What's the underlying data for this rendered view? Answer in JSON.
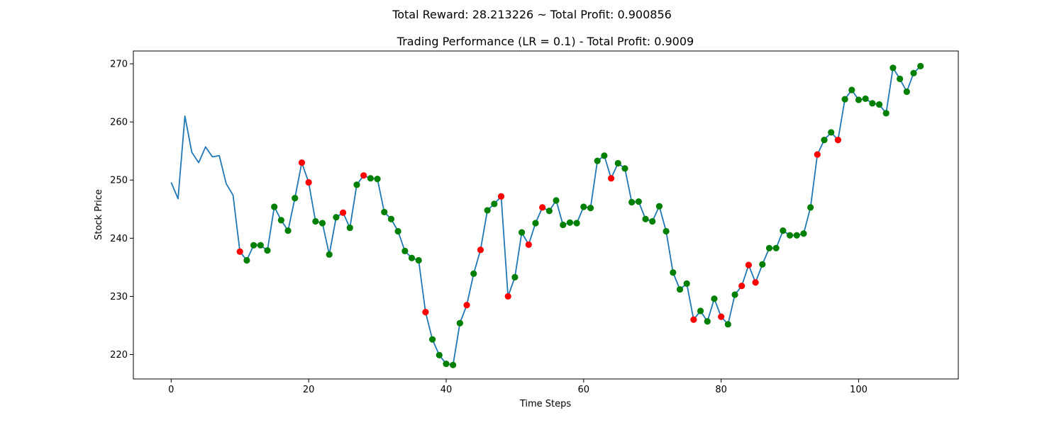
{
  "suptitle": "Total Reward: 28.213226 ~ Total Profit: 0.900856",
  "chart_data": {
    "type": "line",
    "title": "Trading Performance (LR = 0.1) - Total Profit: 0.9009",
    "xlabel": "Time Steps",
    "ylabel": "Stock Price",
    "xlim": [
      -5.5,
      114.5
    ],
    "ylim": [
      215.8,
      272.2
    ],
    "xticks": [
      0,
      20,
      40,
      60,
      80,
      100
    ],
    "yticks": [
      220,
      230,
      240,
      250,
      260,
      270
    ],
    "grid": false,
    "line_color": "#1f77b4",
    "short_color": "#ff0000",
    "long_color": "#008000",
    "series": [
      {
        "values": [
          249.6,
          246.8,
          261.0,
          254.8,
          253.0,
          255.7,
          254.0,
          254.2,
          249.4,
          247.4,
          237.7,
          236.2,
          238.8,
          238.8,
          237.9,
          245.4,
          243.1,
          241.3,
          246.9,
          253.0,
          249.6,
          242.9,
          242.6,
          237.2,
          243.6,
          244.4,
          241.8,
          249.2,
          250.8,
          250.3,
          250.2,
          244.5,
          243.3,
          241.2,
          237.8,
          236.6,
          236.2,
          227.3,
          222.6,
          219.9,
          218.4,
          218.2,
          225.4,
          228.5,
          233.9,
          238.0,
          244.8,
          245.9,
          247.2,
          230.0,
          233.3,
          241.0,
          238.9,
          242.6,
          245.3,
          244.7,
          246.5,
          242.3,
          242.7,
          242.6,
          245.4,
          245.2,
          253.3,
          254.2,
          250.3,
          252.9,
          252.0,
          246.2,
          246.3,
          243.3,
          242.9,
          245.5,
          241.2,
          234.1,
          231.2,
          232.2,
          226.0,
          227.5,
          225.7,
          229.6,
          226.5,
          225.2,
          230.3,
          231.8,
          235.4,
          232.4,
          235.5,
          238.3,
          238.3,
          241.3,
          240.5,
          240.5,
          240.8,
          245.3,
          254.4,
          256.9,
          258.2,
          256.9,
          263.9,
          265.5,
          263.8,
          264.0,
          263.2,
          263.0,
          261.5,
          269.3,
          267.4,
          265.2,
          268.4,
          269.6
        ]
      }
    ],
    "markers": [
      {
        "x": 10,
        "side": "short"
      },
      {
        "x": 11,
        "side": "long"
      },
      {
        "x": 12,
        "side": "long"
      },
      {
        "x": 13,
        "side": "long"
      },
      {
        "x": 14,
        "side": "long"
      },
      {
        "x": 15,
        "side": "long"
      },
      {
        "x": 16,
        "side": "long"
      },
      {
        "x": 17,
        "side": "long"
      },
      {
        "x": 18,
        "side": "long"
      },
      {
        "x": 19,
        "side": "short"
      },
      {
        "x": 20,
        "side": "short"
      },
      {
        "x": 21,
        "side": "long"
      },
      {
        "x": 22,
        "side": "long"
      },
      {
        "x": 23,
        "side": "long"
      },
      {
        "x": 24,
        "side": "long"
      },
      {
        "x": 25,
        "side": "short"
      },
      {
        "x": 26,
        "side": "long"
      },
      {
        "x": 27,
        "side": "long"
      },
      {
        "x": 28,
        "side": "short"
      },
      {
        "x": 29,
        "side": "long"
      },
      {
        "x": 30,
        "side": "long"
      },
      {
        "x": 31,
        "side": "long"
      },
      {
        "x": 32,
        "side": "long"
      },
      {
        "x": 33,
        "side": "long"
      },
      {
        "x": 34,
        "side": "long"
      },
      {
        "x": 35,
        "side": "long"
      },
      {
        "x": 36,
        "side": "long"
      },
      {
        "x": 37,
        "side": "short"
      },
      {
        "x": 38,
        "side": "long"
      },
      {
        "x": 39,
        "side": "long"
      },
      {
        "x": 40,
        "side": "long"
      },
      {
        "x": 41,
        "side": "long"
      },
      {
        "x": 42,
        "side": "long"
      },
      {
        "x": 43,
        "side": "short"
      },
      {
        "x": 44,
        "side": "long"
      },
      {
        "x": 45,
        "side": "short"
      },
      {
        "x": 46,
        "side": "long"
      },
      {
        "x": 47,
        "side": "long"
      },
      {
        "x": 48,
        "side": "short"
      },
      {
        "x": 49,
        "side": "short"
      },
      {
        "x": 50,
        "side": "long"
      },
      {
        "x": 51,
        "side": "long"
      },
      {
        "x": 52,
        "side": "short"
      },
      {
        "x": 53,
        "side": "long"
      },
      {
        "x": 54,
        "side": "short"
      },
      {
        "x": 55,
        "side": "long"
      },
      {
        "x": 56,
        "side": "long"
      },
      {
        "x": 57,
        "side": "long"
      },
      {
        "x": 58,
        "side": "long"
      },
      {
        "x": 59,
        "side": "long"
      },
      {
        "x": 60,
        "side": "long"
      },
      {
        "x": 61,
        "side": "long"
      },
      {
        "x": 62,
        "side": "long"
      },
      {
        "x": 63,
        "side": "long"
      },
      {
        "x": 64,
        "side": "short"
      },
      {
        "x": 65,
        "side": "long"
      },
      {
        "x": 66,
        "side": "long"
      },
      {
        "x": 67,
        "side": "long"
      },
      {
        "x": 68,
        "side": "long"
      },
      {
        "x": 69,
        "side": "long"
      },
      {
        "x": 70,
        "side": "long"
      },
      {
        "x": 71,
        "side": "long"
      },
      {
        "x": 72,
        "side": "long"
      },
      {
        "x": 73,
        "side": "long"
      },
      {
        "x": 74,
        "side": "long"
      },
      {
        "x": 75,
        "side": "long"
      },
      {
        "x": 76,
        "side": "short"
      },
      {
        "x": 77,
        "side": "long"
      },
      {
        "x": 78,
        "side": "long"
      },
      {
        "x": 79,
        "side": "long"
      },
      {
        "x": 80,
        "side": "short"
      },
      {
        "x": 81,
        "side": "long"
      },
      {
        "x": 82,
        "side": "long"
      },
      {
        "x": 83,
        "side": "short"
      },
      {
        "x": 84,
        "side": "short"
      },
      {
        "x": 85,
        "side": "short"
      },
      {
        "x": 86,
        "side": "long"
      },
      {
        "x": 87,
        "side": "long"
      },
      {
        "x": 88,
        "side": "long"
      },
      {
        "x": 89,
        "side": "long"
      },
      {
        "x": 90,
        "side": "long"
      },
      {
        "x": 91,
        "side": "long"
      },
      {
        "x": 92,
        "side": "long"
      },
      {
        "x": 93,
        "side": "long"
      },
      {
        "x": 94,
        "side": "short"
      },
      {
        "x": 95,
        "side": "long"
      },
      {
        "x": 96,
        "side": "long"
      },
      {
        "x": 97,
        "side": "short"
      },
      {
        "x": 98,
        "side": "long"
      },
      {
        "x": 99,
        "side": "long"
      },
      {
        "x": 100,
        "side": "long"
      },
      {
        "x": 101,
        "side": "long"
      },
      {
        "x": 102,
        "side": "long"
      },
      {
        "x": 103,
        "side": "long"
      },
      {
        "x": 104,
        "side": "long"
      },
      {
        "x": 105,
        "side": "long"
      },
      {
        "x": 106,
        "side": "long"
      },
      {
        "x": 107,
        "side": "long"
      },
      {
        "x": 108,
        "side": "long"
      },
      {
        "x": 109,
        "side": "long"
      }
    ]
  }
}
